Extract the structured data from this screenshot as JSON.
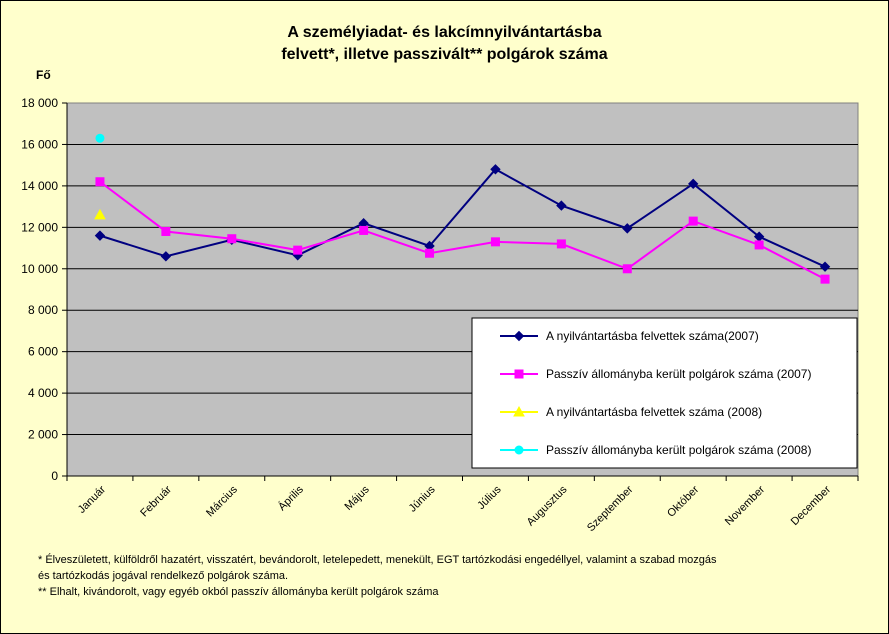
{
  "chart_data": {
    "type": "line",
    "title": [
      "A személyiadat- és lakcímnyilvántartásba",
      "felvett*, illetve passzivált** polgárok száma"
    ],
    "ylabel": "Fő",
    "ylim": [
      0,
      18000
    ],
    "yticks": [
      "0",
      "2 000",
      "4 000",
      "6 000",
      "8 000",
      "10 000",
      "12 000",
      "14 000",
      "16 000",
      "18 000"
    ],
    "categories": [
      "Január",
      "Február",
      "Március",
      "Április",
      "Május",
      "Június",
      "Július",
      "Augusztus",
      "Szeptember",
      "Október",
      "November",
      "December"
    ],
    "grid": "horizontal",
    "legend_placement": "bottom-right",
    "series": [
      {
        "name": "A nyilvántartásba felvettek száma(2007)",
        "color": "#000080",
        "marker": "diamond",
        "values": [
          11600,
          10600,
          11400,
          10650,
          12200,
          11100,
          14800,
          13050,
          11950,
          14100,
          11550,
          10100
        ]
      },
      {
        "name": "Passzív állományba került polgárok száma (2007)",
        "color": "#ff00ff",
        "marker": "square",
        "values": [
          14200,
          11800,
          11450,
          10900,
          11850,
          10750,
          11300,
          11200,
          10000,
          12300,
          11150,
          9500
        ]
      },
      {
        "name": "A nyilvántartásba felvettek száma (2008)",
        "color": "#ffff00",
        "marker": "triangle",
        "values": [
          12600,
          null,
          null,
          null,
          null,
          null,
          null,
          null,
          null,
          null,
          null,
          null
        ]
      },
      {
        "name": "Passzív állományba került polgárok száma (2008)",
        "color": "#00ffff",
        "marker": "circle",
        "values": [
          16300,
          null,
          null,
          null,
          null,
          null,
          null,
          null,
          null,
          null,
          null,
          null
        ]
      }
    ]
  },
  "footnotes": [
    "* Élveszületett, külföldről hazatért, visszatért, bevándorolt, letelepedett, menekült, EGT tartózkodási engedéllyel, valamint a szabad mozgás",
    "és tartózkodás jogával rendelkező  polgárok száma.",
    "** Elhalt, kivándorolt, vagy egyéb okból passzív állományba került  polgárok száma"
  ]
}
